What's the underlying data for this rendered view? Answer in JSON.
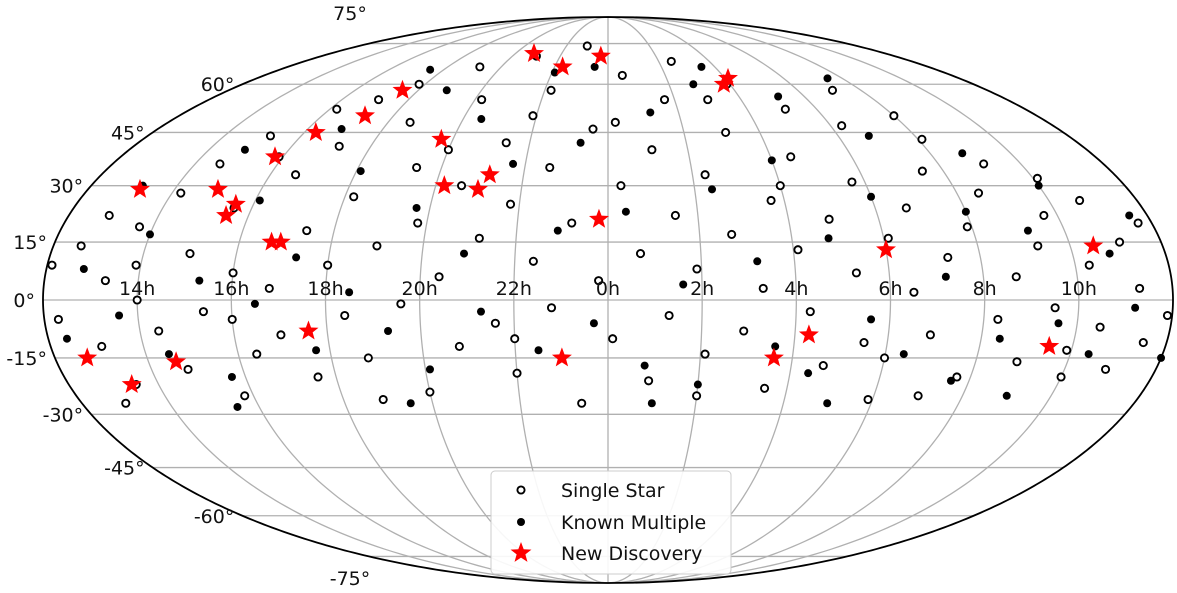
{
  "chart_data": {
    "type": "scatter",
    "projection": "mollweide",
    "ra_ticks": [
      "14h",
      "16h",
      "18h",
      "20h",
      "22h",
      "0h",
      "2h",
      "4h",
      "6h",
      "8h",
      "10h"
    ],
    "dec_ticks": [
      {
        "label": "75°",
        "value": 75
      },
      {
        "label": "60°",
        "value": 60
      },
      {
        "label": "45°",
        "value": 45
      },
      {
        "label": "30°",
        "value": 30
      },
      {
        "label": "15°",
        "value": 15
      },
      {
        "label": "0°",
        "value": 0
      },
      {
        "label": "-15°",
        "value": -15
      },
      {
        "label": "-30°",
        "value": -30
      },
      {
        "label": "-45°",
        "value": -45
      },
      {
        "label": "-60°",
        "value": -60
      },
      {
        "label": "-75°",
        "value": -75
      }
    ],
    "grid": true,
    "legend_position": "bottom-center",
    "colors": {
      "single": "#000000",
      "multiple": "#000000",
      "new": "#ff0000",
      "grid": "#b0b0b0"
    },
    "series": [
      {
        "name": "Single Star",
        "marker": "open-circle",
        "points": [
          {
            "ra": 12.3,
            "dec": -5
          },
          {
            "ra": 12.6,
            "dec": 14
          },
          {
            "ra": 12.9,
            "dec": 22
          },
          {
            "ra": 13.1,
            "dec": -12
          },
          {
            "ra": 13.3,
            "dec": 5
          },
          {
            "ra": 13.5,
            "dec": -22
          },
          {
            "ra": 13.7,
            "dec": 19
          },
          {
            "ra": 13.9,
            "dec": 9
          },
          {
            "ra": 14.2,
            "dec": 28
          },
          {
            "ra": 14.4,
            "dec": -8
          },
          {
            "ra": 14.6,
            "dec": 36
          },
          {
            "ra": 14.8,
            "dec": -18
          },
          {
            "ra": 15.0,
            "dec": 12
          },
          {
            "ra": 15.2,
            "dec": 44
          },
          {
            "ra": 15.4,
            "dec": -3
          },
          {
            "ra": 15.6,
            "dec": 24
          },
          {
            "ra": 15.8,
            "dec": -25
          },
          {
            "ra": 16.0,
            "dec": 7
          },
          {
            "ra": 16.2,
            "dec": 52
          },
          {
            "ra": 16.4,
            "dec": -14
          },
          {
            "ra": 16.6,
            "dec": 33
          },
          {
            "ra": 16.8,
            "dec": 3
          },
          {
            "ra": 17.0,
            "dec": -9
          },
          {
            "ra": 17.2,
            "dec": 41
          },
          {
            "ra": 17.4,
            "dec": 18
          },
          {
            "ra": 17.6,
            "dec": -20
          },
          {
            "ra": 17.8,
            "dec": 60
          },
          {
            "ra": 18.0,
            "dec": 9
          },
          {
            "ra": 18.2,
            "dec": 27
          },
          {
            "ra": 18.4,
            "dec": -4
          },
          {
            "ra": 18.6,
            "dec": 48
          },
          {
            "ra": 18.8,
            "dec": -15
          },
          {
            "ra": 19.0,
            "dec": 14
          },
          {
            "ra": 19.2,
            "dec": 66
          },
          {
            "ra": 19.4,
            "dec": 35
          },
          {
            "ra": 19.6,
            "dec": -1
          },
          {
            "ra": 19.8,
            "dec": 20
          },
          {
            "ra": 20.0,
            "dec": -24
          },
          {
            "ra": 20.2,
            "dec": 55
          },
          {
            "ra": 20.4,
            "dec": 6
          },
          {
            "ra": 20.6,
            "dec": 30
          },
          {
            "ra": 20.8,
            "dec": -12
          },
          {
            "ra": 21.0,
            "dec": 70
          },
          {
            "ra": 21.2,
            "dec": 16
          },
          {
            "ra": 21.4,
            "dec": 42
          },
          {
            "ra": 21.6,
            "dec": -6
          },
          {
            "ra": 21.8,
            "dec": 25
          },
          {
            "ra": 22.0,
            "dec": -19
          },
          {
            "ra": 22.2,
            "dec": 58
          },
          {
            "ra": 22.4,
            "dec": 10
          },
          {
            "ra": 22.6,
            "dec": 35
          },
          {
            "ra": 22.8,
            "dec": -2
          },
          {
            "ra": 23.0,
            "dec": 74
          },
          {
            "ra": 23.2,
            "dec": 20
          },
          {
            "ra": 23.4,
            "dec": -27
          },
          {
            "ra": 23.6,
            "dec": 46
          },
          {
            "ra": 23.8,
            "dec": 5
          },
          {
            "ra": 0.1,
            "dec": -10
          },
          {
            "ra": 0.3,
            "dec": 30
          },
          {
            "ra": 0.5,
            "dec": 63
          },
          {
            "ra": 0.7,
            "dec": 12
          },
          {
            "ra": 0.9,
            "dec": -21
          },
          {
            "ra": 1.1,
            "dec": 40
          },
          {
            "ra": 1.3,
            "dec": -4
          },
          {
            "ra": 1.5,
            "dec": 22
          },
          {
            "ra": 1.7,
            "dec": 55
          },
          {
            "ra": 1.9,
            "dec": 8
          },
          {
            "ra": 2.1,
            "dec": -14
          },
          {
            "ra": 2.3,
            "dec": 33
          },
          {
            "ra": 2.5,
            "dec": 68
          },
          {
            "ra": 2.7,
            "dec": 17
          },
          {
            "ra": 2.9,
            "dec": -8
          },
          {
            "ra": 3.1,
            "dec": 45
          },
          {
            "ra": 3.3,
            "dec": 3
          },
          {
            "ra": 3.5,
            "dec": -23
          },
          {
            "ra": 3.7,
            "dec": 26
          },
          {
            "ra": 3.9,
            "dec": 60
          },
          {
            "ra": 4.1,
            "dec": 13
          },
          {
            "ra": 4.3,
            "dec": -3
          },
          {
            "ra": 4.5,
            "dec": 38
          },
          {
            "ra": 4.7,
            "dec": -17
          },
          {
            "ra": 4.9,
            "dec": 21
          },
          {
            "ra": 5.1,
            "dec": 52
          },
          {
            "ra": 5.3,
            "dec": 7
          },
          {
            "ra": 5.5,
            "dec": -11
          },
          {
            "ra": 5.7,
            "dec": 31
          },
          {
            "ra": 5.9,
            "dec": -26
          },
          {
            "ra": 6.1,
            "dec": 16
          },
          {
            "ra": 6.3,
            "dec": 47
          },
          {
            "ra": 6.5,
            "dec": 2
          },
          {
            "ra": 6.7,
            "dec": 24
          },
          {
            "ra": 6.9,
            "dec": -9
          },
          {
            "ra": 7.1,
            "dec": 58
          },
          {
            "ra": 7.3,
            "dec": 11
          },
          {
            "ra": 7.5,
            "dec": 34
          },
          {
            "ra": 7.7,
            "dec": -20
          },
          {
            "ra": 7.9,
            "dec": 19
          },
          {
            "ra": 8.1,
            "dec": 43
          },
          {
            "ra": 8.3,
            "dec": -5
          },
          {
            "ra": 8.5,
            "dec": 28
          },
          {
            "ra": 8.7,
            "dec": 6
          },
          {
            "ra": 8.9,
            "dec": -16
          },
          {
            "ra": 9.1,
            "dec": 36
          },
          {
            "ra": 9.3,
            "dec": 14
          },
          {
            "ra": 9.5,
            "dec": -2
          },
          {
            "ra": 9.7,
            "dec": 22
          },
          {
            "ra": 9.9,
            "dec": -13
          },
          {
            "ra": 10.1,
            "dec": 32
          },
          {
            "ra": 10.3,
            "dec": 9
          },
          {
            "ra": 10.5,
            "dec": -7
          },
          {
            "ra": 10.7,
            "dec": 26
          },
          {
            "ra": 10.9,
            "dec": -18
          },
          {
            "ra": 11.1,
            "dec": 15
          },
          {
            "ra": 11.3,
            "dec": 3
          },
          {
            "ra": 11.5,
            "dec": -11
          },
          {
            "ra": 11.7,
            "dec": 20
          },
          {
            "ra": 11.9,
            "dec": -4
          },
          {
            "ra": 12.1,
            "dec": 9
          },
          {
            "ra": 13.0,
            "dec": -27
          },
          {
            "ra": 15.9,
            "dec": 38
          },
          {
            "ra": 17.1,
            "dec": 55
          },
          {
            "ra": 18.9,
            "dec": -26
          },
          {
            "ra": 21.9,
            "dec": 50
          },
          {
            "ra": 0.2,
            "dec": 48
          },
          {
            "ra": 2.0,
            "dec": -25
          },
          {
            "ra": 4.0,
            "dec": 30
          },
          {
            "ra": 6.0,
            "dec": -15
          },
          {
            "ra": 8.0,
            "dec": 50
          },
          {
            "ra": 10.0,
            "dec": -20
          },
          {
            "ra": 14.0,
            "dec": 0
          },
          {
            "ra": 16.0,
            "dec": -5
          },
          {
            "ra": 20.0,
            "dec": 40
          },
          {
            "ra": 22.0,
            "dec": -10
          },
          {
            "ra": 3.0,
            "dec": 55
          },
          {
            "ra": 7.0,
            "dec": -25
          }
        ]
      },
      {
        "name": "Known Multiple",
        "marker": "filled-circle",
        "points": [
          {
            "ra": 12.4,
            "dec": -10
          },
          {
            "ra": 12.8,
            "dec": 8
          },
          {
            "ra": 13.2,
            "dec": 30
          },
          {
            "ra": 13.6,
            "dec": -4
          },
          {
            "ra": 14.0,
            "dec": 17
          },
          {
            "ra": 14.5,
            "dec": -14
          },
          {
            "ra": 14.9,
            "dec": 40
          },
          {
            "ra": 15.3,
            "dec": 5
          },
          {
            "ra": 15.7,
            "dec": -20
          },
          {
            "ra": 16.1,
            "dec": 26
          },
          {
            "ra": 16.5,
            "dec": -1
          },
          {
            "ra": 16.9,
            "dec": 46
          },
          {
            "ra": 17.3,
            "dec": 11
          },
          {
            "ra": 17.7,
            "dec": -13
          },
          {
            "ra": 18.1,
            "dec": 34
          },
          {
            "ra": 18.5,
            "dec": 2
          },
          {
            "ra": 18.9,
            "dec": 58
          },
          {
            "ra": 19.3,
            "dec": -8
          },
          {
            "ra": 19.7,
            "dec": 24
          },
          {
            "ra": 20.1,
            "dec": -18
          },
          {
            "ra": 20.5,
            "dec": 49
          },
          {
            "ra": 20.9,
            "dec": 12
          },
          {
            "ra": 21.3,
            "dec": -3
          },
          {
            "ra": 21.7,
            "dec": 36
          },
          {
            "ra": 22.1,
            "dec": 64
          },
          {
            "ra": 22.5,
            "dec": -13
          },
          {
            "ra": 22.9,
            "dec": 18
          },
          {
            "ra": 23.3,
            "dec": 42
          },
          {
            "ra": 23.7,
            "dec": -6
          },
          {
            "ra": 0.4,
            "dec": 23
          },
          {
            "ra": 0.8,
            "dec": -17
          },
          {
            "ra": 1.2,
            "dec": 51
          },
          {
            "ra": 1.6,
            "dec": 4
          },
          {
            "ra": 2.0,
            "dec": -22
          },
          {
            "ra": 2.4,
            "dec": 29
          },
          {
            "ra": 2.8,
            "dec": 60
          },
          {
            "ra": 3.2,
            "dec": 10
          },
          {
            "ra": 3.6,
            "dec": -12
          },
          {
            "ra": 4.0,
            "dec": 37
          },
          {
            "ra": 4.4,
            "dec": -19
          },
          {
            "ra": 4.8,
            "dec": 16
          },
          {
            "ra": 5.2,
            "dec": 56
          },
          {
            "ra": 5.6,
            "dec": -5
          },
          {
            "ra": 6.0,
            "dec": 27
          },
          {
            "ra": 6.4,
            "dec": -14
          },
          {
            "ra": 6.8,
            "dec": 44
          },
          {
            "ra": 7.2,
            "dec": 6
          },
          {
            "ra": 7.6,
            "dec": -21
          },
          {
            "ra": 8.0,
            "dec": 23
          },
          {
            "ra": 8.4,
            "dec": -10
          },
          {
            "ra": 8.8,
            "dec": 39
          },
          {
            "ra": 9.2,
            "dec": 18
          },
          {
            "ra": 9.6,
            "dec": -6
          },
          {
            "ra": 10.0,
            "dec": 30
          },
          {
            "ra": 10.4,
            "dec": -14
          },
          {
            "ra": 10.8,
            "dec": 12
          },
          {
            "ra": 11.2,
            "dec": -2
          },
          {
            "ra": 11.6,
            "dec": 22
          },
          {
            "ra": 12.0,
            "dec": -15
          },
          {
            "ra": 15.5,
            "dec": -28
          },
          {
            "ra": 19.5,
            "dec": -27
          },
          {
            "ra": 1.0,
            "dec": -27
          },
          {
            "ra": 5.0,
            "dec": -27
          },
          {
            "ra": 9.0,
            "dec": -25
          },
          {
            "ra": 17.5,
            "dec": 65
          },
          {
            "ra": 23.5,
            "dec": 66
          },
          {
            "ra": 3.5,
            "dec": 66
          },
          {
            "ra": 7.5,
            "dec": 62
          }
        ]
      },
      {
        "name": "New Discovery",
        "marker": "star",
        "points": [
          {
            "ra": 13.2,
            "dec": 29
          },
          {
            "ra": 12.7,
            "dec": -15
          },
          {
            "ra": 13.4,
            "dec": -22
          },
          {
            "ra": 14.6,
            "dec": -16
          },
          {
            "ra": 15.0,
            "dec": 29
          },
          {
            "ra": 15.5,
            "dec": 22
          },
          {
            "ra": 15.6,
            "dec": 25
          },
          {
            "ra": 15.8,
            "dec": 38
          },
          {
            "ra": 16.3,
            "dec": 45
          },
          {
            "ra": 16.7,
            "dec": 15
          },
          {
            "ra": 16.9,
            "dec": 15
          },
          {
            "ra": 17.2,
            "dec": 50
          },
          {
            "ra": 17.5,
            "dec": 58
          },
          {
            "ra": 17.6,
            "dec": -8
          },
          {
            "ra": 19.7,
            "dec": 43
          },
          {
            "ra": 20.2,
            "dec": 30
          },
          {
            "ra": 20.8,
            "dec": 71
          },
          {
            "ra": 21.2,
            "dec": 33
          },
          {
            "ra": 21.0,
            "dec": 29
          },
          {
            "ra": 22.3,
            "dec": 66
          },
          {
            "ra": 23.0,
            "dec": -15
          },
          {
            "ra": 23.8,
            "dec": 21
          },
          {
            "ra": 23.7,
            "dec": 70
          },
          {
            "ra": 3.6,
            "dec": -15
          },
          {
            "ra": 4.3,
            "dec": -9
          },
          {
            "ra": 3.8,
            "dec": 60
          },
          {
            "ra": 4.1,
            "dec": 62
          },
          {
            "ra": 6.0,
            "dec": 13
          },
          {
            "ra": 9.5,
            "dec": -12
          },
          {
            "ra": 10.5,
            "dec": 14
          }
        ]
      }
    ]
  }
}
